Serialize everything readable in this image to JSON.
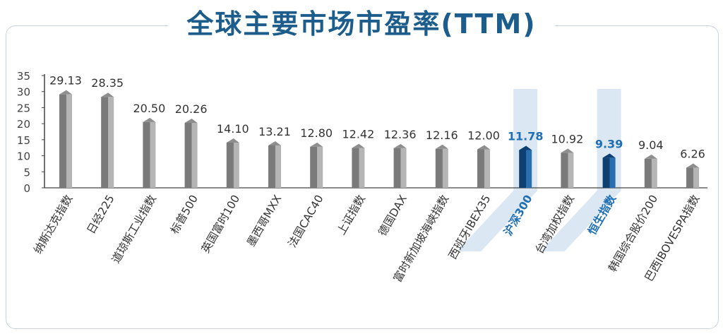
{
  "title": "全球主要市场市盈率(TTM)",
  "colors": {
    "title": "#1c5d8c",
    "bar_gray_light": "#b5b5b5",
    "bar_gray_dark": "#7a7a7a",
    "bar_blue_light": "#2a6fb0",
    "bar_blue_dark": "#0e3f73",
    "highlight_band": "#dbe7f3",
    "highlight_text": "#1f6fb5",
    "axis": "#444444",
    "value_text": "#333333"
  },
  "chart_data": {
    "type": "bar",
    "title": "全球主要市场市盈率(TTM)",
    "categories": [
      "纳斯达克指数",
      "日经225",
      "道琼斯工业指数",
      "标普500",
      "英国富时100",
      "墨西哥MXX",
      "法国CAC40",
      "上证指数",
      "德国DAX",
      "富时新加坡海峡指数",
      "西班牙IBEX35",
      "沪深300",
      "台湾加权指数",
      "恒生指数",
      "韩国综合股价200",
      "巴西IBOVESPA指数"
    ],
    "values": [
      29.13,
      28.35,
      20.5,
      20.26,
      14.1,
      13.21,
      12.8,
      12.42,
      12.36,
      12.16,
      12.0,
      11.78,
      10.92,
      9.39,
      9.04,
      6.26
    ],
    "value_labels": [
      "29.13",
      "28.35",
      "20.50",
      "20.26",
      "14.10",
      "13.21",
      "12.80",
      "12.42",
      "12.36",
      "12.16",
      "12.00",
      "11.78",
      "10.92",
      "9.39",
      "9.04",
      "6.26"
    ],
    "highlighted": [
      "沪深300",
      "恒生指数"
    ],
    "y_ticks": [
      0,
      5,
      10,
      15,
      20,
      25,
      30,
      35
    ],
    "ylim": [
      0,
      35
    ],
    "xlabel": "",
    "ylabel": "",
    "grid": false,
    "legend": "none"
  }
}
